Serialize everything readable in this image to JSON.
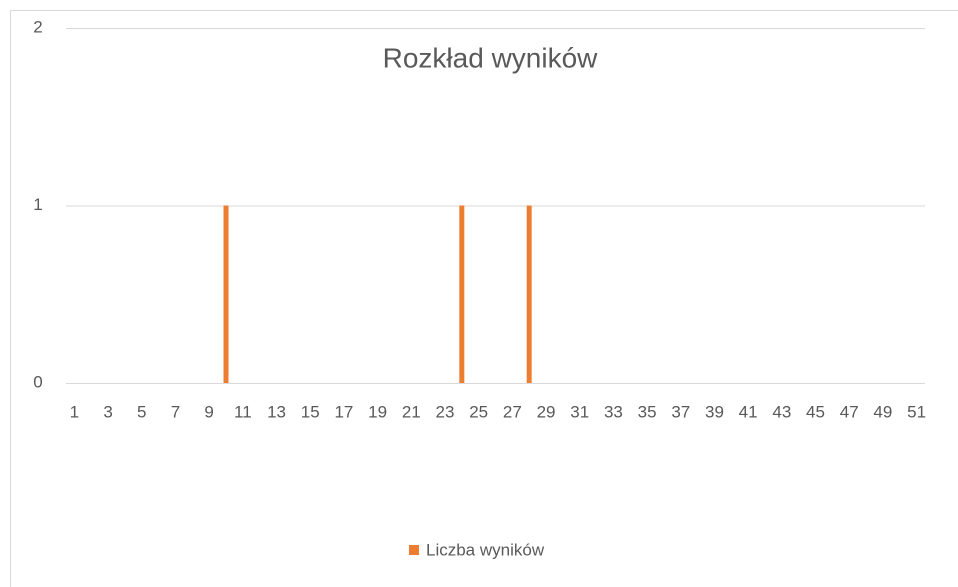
{
  "chart_data": {
    "type": "bar",
    "title": "Rozkład wyników",
    "categories": [
      1,
      null,
      3,
      null,
      5,
      null,
      7,
      null,
      9,
      null,
      11,
      null,
      13,
      null,
      15,
      null,
      17,
      null,
      19,
      null,
      21,
      null,
      23,
      null,
      25,
      null,
      27,
      null,
      29,
      null,
      31,
      null,
      33,
      null,
      35,
      null,
      37,
      null,
      39,
      null,
      41,
      null,
      43,
      null,
      45,
      null,
      47,
      null,
      49,
      null,
      51
    ],
    "series": [
      {
        "name": "Liczba wyników",
        "color": "#ed7d31",
        "values": [
          0,
          0,
          0,
          0,
          0,
          0,
          0,
          0,
          0,
          1,
          0,
          0,
          0,
          0,
          0,
          0,
          0,
          0,
          0,
          0,
          0,
          0,
          0,
          1,
          0,
          0,
          0,
          1,
          0,
          0,
          0,
          0,
          0,
          0,
          0,
          0,
          0,
          0,
          0,
          0,
          0,
          0,
          0,
          0,
          0,
          0,
          0,
          0,
          0,
          0,
          0
        ]
      }
    ],
    "ylim": [
      0,
      2
    ],
    "yticks": [
      0,
      1,
      2
    ],
    "grid": true,
    "legend": "bottom"
  }
}
